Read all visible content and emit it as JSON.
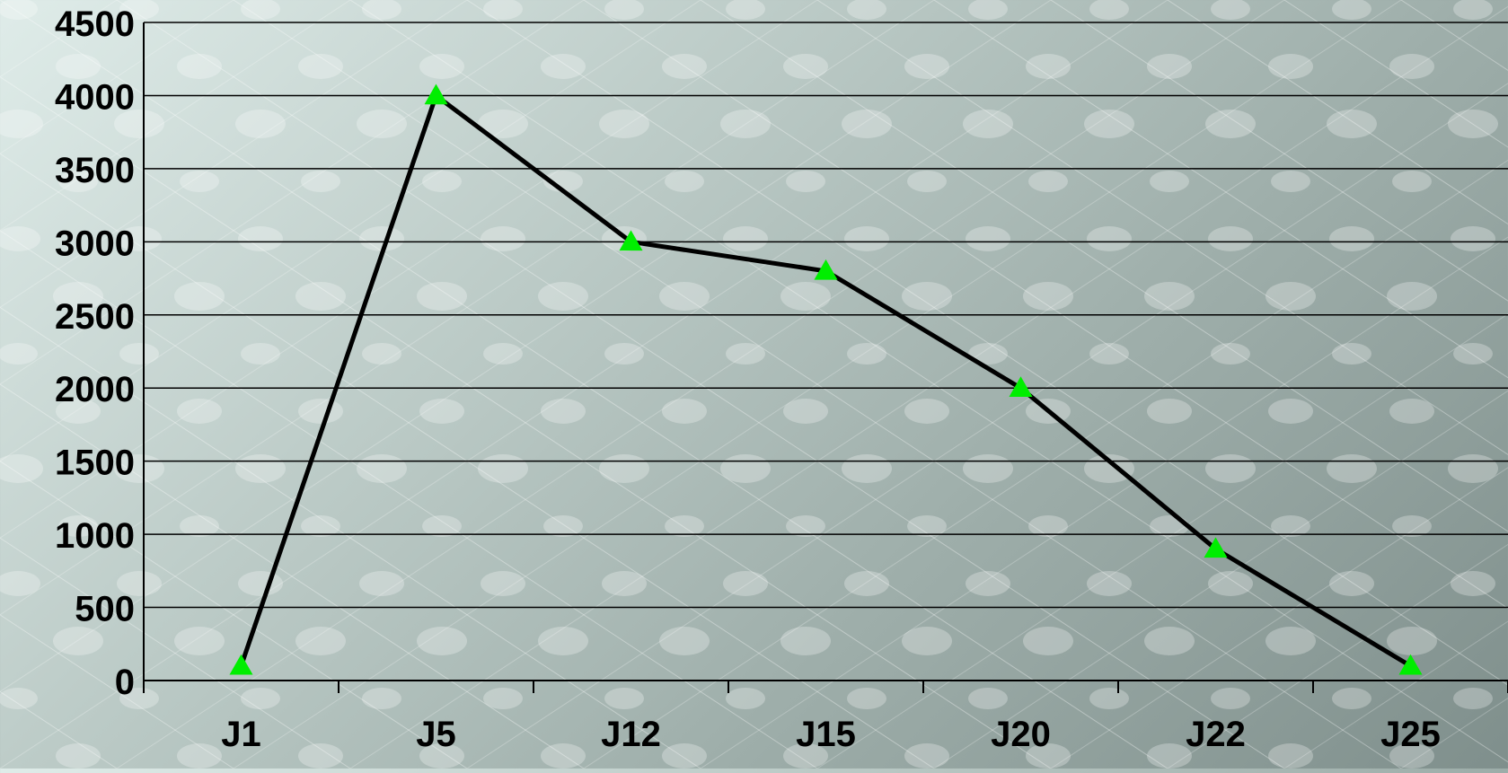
{
  "chart_data": {
    "type": "line",
    "categories": [
      "J1",
      "J5",
      "J12",
      "J15",
      "J20",
      "J22",
      "J25"
    ],
    "series": [
      {
        "values": [
          100,
          4000,
          3000,
          2800,
          2000,
          900,
          100
        ]
      }
    ],
    "xlabel": "",
    "ylabel": "",
    "ylim": [
      0,
      4500
    ],
    "yticks": [
      0,
      500,
      1000,
      1500,
      2000,
      2500,
      3000,
      3500,
      4000,
      4500
    ],
    "grid": true,
    "legend": "none",
    "colors": {
      "line": "#000000",
      "marker": "#00ee00",
      "grid": "#000000"
    },
    "marker": "triangle"
  }
}
